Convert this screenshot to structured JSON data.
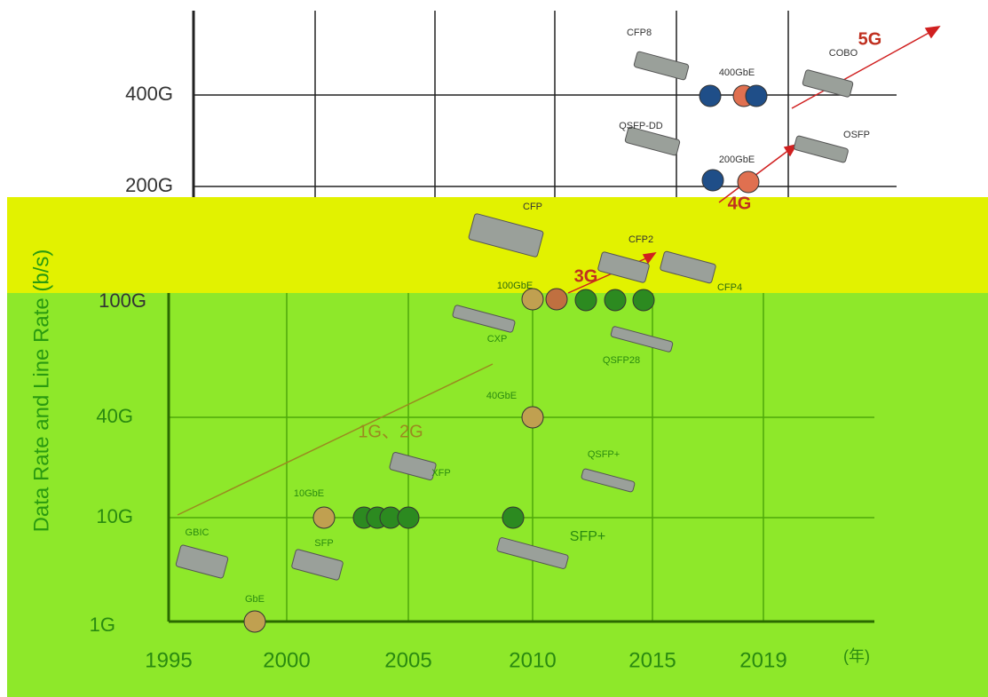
{
  "y_axis": {
    "title": "Data Rate and Line Rate (b/s)",
    "ticks": [
      "1G",
      "10G",
      "40G",
      "100G",
      "200G",
      "400G"
    ]
  },
  "x_axis": {
    "ticks": [
      "1995",
      "2000",
      "2005",
      "2010",
      "2015",
      "2019"
    ],
    "unit": "(年)"
  },
  "generations": [
    "1G、2G",
    "3G",
    "4G",
    "5G"
  ],
  "modules": [
    "CFP8",
    "400GbE",
    "COBO",
    "QSFP-DD",
    "OSFP",
    "200GbE",
    "CFP",
    "CFP2",
    "100GbE",
    "CFP4",
    "CXP",
    "QSFP28",
    "40GbE",
    "QSFP+",
    "XFP",
    "10GbE",
    "GBIC",
    "SFP",
    "GbE",
    "SFP+"
  ]
}
